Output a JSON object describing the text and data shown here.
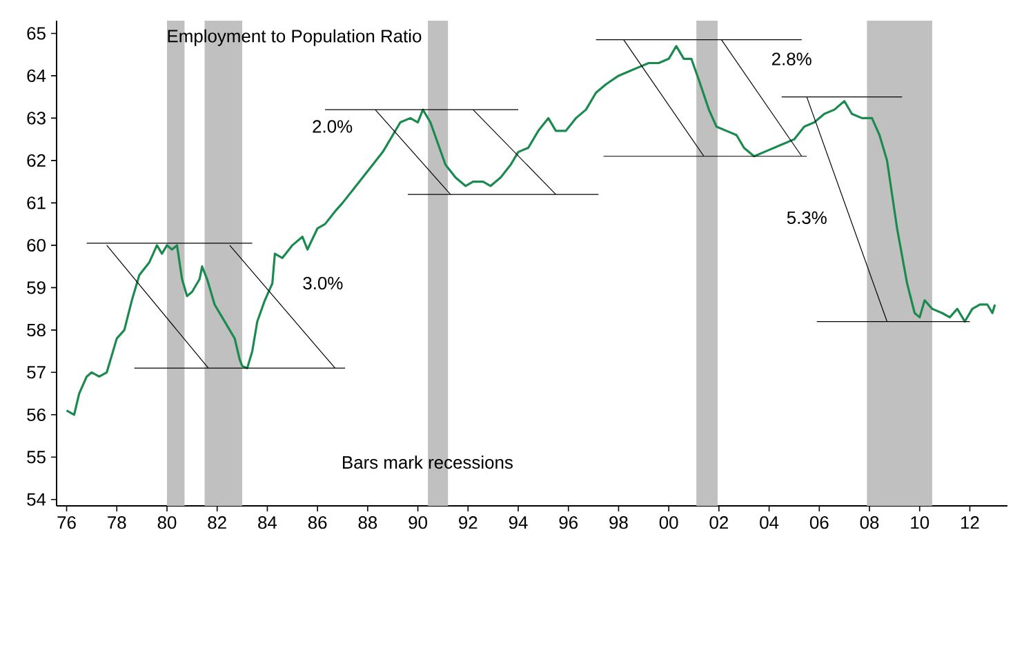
{
  "chart_data": {
    "type": "line",
    "title": "Employment to Population Ratio",
    "xlim": [
      1975.6,
      2013.5
    ],
    "ylim": [
      53.85,
      65.3
    ],
    "xticks": [
      {
        "value": 1976,
        "label": "76"
      },
      {
        "value": 1978,
        "label": "78"
      },
      {
        "value": 1980,
        "label": "80"
      },
      {
        "value": 1982,
        "label": "82"
      },
      {
        "value": 1984,
        "label": "84"
      },
      {
        "value": 1986,
        "label": "86"
      },
      {
        "value": 1988,
        "label": "88"
      },
      {
        "value": 1990,
        "label": "90"
      },
      {
        "value": 1992,
        "label": "92"
      },
      {
        "value": 1994,
        "label": "94"
      },
      {
        "value": 1996,
        "label": "96"
      },
      {
        "value": 1998,
        "label": "98"
      },
      {
        "value": 2000,
        "label": "00"
      },
      {
        "value": 2002,
        "label": "02"
      },
      {
        "value": 2004,
        "label": "04"
      },
      {
        "value": 2006,
        "label": "06"
      },
      {
        "value": 2008,
        "label": "08"
      },
      {
        "value": 2010,
        "label": "10"
      },
      {
        "value": 2012,
        "label": "12"
      }
    ],
    "yticks": [
      54,
      55,
      56,
      57,
      58,
      59,
      60,
      61,
      62,
      63,
      64,
      65
    ],
    "series": [
      {
        "color": "#1b8a4f",
        "x": [
          1976.0,
          1976.3,
          1976.5,
          1976.8,
          1977.0,
          1977.3,
          1977.6,
          1978.0,
          1978.3,
          1978.6,
          1978.9,
          1979.3,
          1979.6,
          1979.8,
          1980.0,
          1980.2,
          1980.4,
          1980.6,
          1980.8,
          1981.0,
          1981.3,
          1981.4,
          1981.6,
          1981.9,
          1982.2,
          1982.5,
          1982.7,
          1982.9,
          1983.0,
          1983.2,
          1983.4,
          1983.6,
          1983.9,
          1984.2,
          1984.3,
          1984.6,
          1985.0,
          1985.4,
          1985.6,
          1986.0,
          1986.3,
          1986.7,
          1987.0,
          1987.4,
          1987.8,
          1988.2,
          1988.6,
          1989.0,
          1989.3,
          1989.7,
          1990.0,
          1990.2,
          1990.5,
          1990.8,
          1991.1,
          1991.5,
          1991.9,
          1992.2,
          1992.6,
          1992.9,
          1993.3,
          1993.7,
          1994.0,
          1994.4,
          1994.8,
          1995.2,
          1995.5,
          1995.9,
          1996.3,
          1996.7,
          1997.1,
          1997.5,
          1998.0,
          1998.4,
          1998.8,
          1999.2,
          1999.6,
          2000.0,
          2000.3,
          2000.6,
          2000.9,
          2001.2,
          2001.6,
          2001.9,
          2002.3,
          2002.7,
          2003.0,
          2003.4,
          2003.8,
          2004.2,
          2004.6,
          2005.0,
          2005.4,
          2005.8,
          2006.2,
          2006.6,
          2007.0,
          2007.3,
          2007.7,
          2008.1,
          2008.4,
          2008.7,
          2009.1,
          2009.5,
          2009.8,
          2010.0,
          2010.2,
          2010.5,
          2010.9,
          2011.2,
          2011.5,
          2011.8,
          2012.1,
          2012.4,
          2012.7,
          2012.9,
          2013.0
        ],
        "values": [
          56.1,
          56.0,
          56.5,
          56.9,
          57.0,
          56.9,
          57.0,
          57.8,
          58.0,
          58.7,
          59.3,
          59.6,
          60.0,
          59.8,
          60.0,
          59.9,
          60.0,
          59.2,
          58.8,
          58.9,
          59.2,
          59.5,
          59.2,
          58.6,
          58.3,
          58.0,
          57.8,
          57.3,
          57.15,
          57.1,
          57.5,
          58.2,
          58.7,
          59.1,
          59.8,
          59.7,
          60.0,
          60.2,
          59.9,
          60.4,
          60.5,
          60.8,
          61.0,
          61.3,
          61.6,
          61.9,
          62.2,
          62.6,
          62.9,
          63.0,
          62.9,
          63.2,
          62.9,
          62.4,
          61.9,
          61.6,
          61.4,
          61.5,
          61.5,
          61.4,
          61.6,
          61.9,
          62.2,
          62.3,
          62.7,
          63.0,
          62.7,
          62.7,
          63.0,
          63.2,
          63.6,
          63.8,
          64.0,
          64.1,
          64.2,
          64.3,
          64.3,
          64.4,
          64.7,
          64.4,
          64.4,
          63.9,
          63.2,
          62.8,
          62.7,
          62.6,
          62.3,
          62.1,
          62.2,
          62.3,
          62.4,
          62.5,
          62.8,
          62.9,
          63.1,
          63.2,
          63.4,
          63.1,
          63.0,
          63.0,
          62.6,
          62.0,
          60.4,
          59.1,
          58.4,
          58.3,
          58.7,
          58.5,
          58.4,
          58.3,
          58.5,
          58.2,
          58.5,
          58.6,
          58.6,
          58.4,
          58.6
        ]
      },
      {
        "color": "#000000",
        "x": [
          1976.8,
          1983.4
        ],
        "values": [
          60.05,
          60.05
        ]
      },
      {
        "color": "#000000",
        "x": [
          1978.7,
          1987.1
        ],
        "values": [
          57.1,
          57.1
        ]
      },
      {
        "color": "#000000",
        "x": [
          1977.6,
          1981.65
        ],
        "values": [
          60.0,
          57.1
        ]
      },
      {
        "color": "#000000",
        "x": [
          1982.5,
          1986.7
        ],
        "values": [
          60.0,
          57.1
        ]
      },
      {
        "color": "#000000",
        "x": [
          1986.3,
          1994.0
        ],
        "values": [
          63.2,
          63.2
        ]
      },
      {
        "color": "#000000",
        "x": [
          1989.6,
          1997.2
        ],
        "values": [
          61.2,
          61.2
        ]
      },
      {
        "color": "#000000",
        "x": [
          1988.3,
          1991.3
        ],
        "values": [
          63.2,
          61.2
        ]
      },
      {
        "color": "#000000",
        "x": [
          1992.2,
          1995.5
        ],
        "values": [
          63.2,
          61.2
        ]
      },
      {
        "color": "#000000",
        "x": [
          1997.1,
          2005.3
        ],
        "values": [
          64.85,
          64.85
        ]
      },
      {
        "color": "#000000",
        "x": [
          1997.4,
          2005.5
        ],
        "values": [
          62.1,
          62.1
        ]
      },
      {
        "color": "#000000",
        "x": [
          1998.2,
          2001.4
        ],
        "values": [
          64.85,
          62.1
        ]
      },
      {
        "color": "#000000",
        "x": [
          2002.1,
          2005.3
        ],
        "values": [
          64.85,
          62.1
        ]
      },
      {
        "color": "#000000",
        "x": [
          2004.5,
          2009.3
        ],
        "values": [
          63.5,
          63.5
        ]
      },
      {
        "color": "#000000",
        "x": [
          2005.9,
          2012.0
        ],
        "values": [
          58.2,
          58.2
        ]
      },
      {
        "color": "#000000",
        "x": [
          2005.5,
          2008.7
        ],
        "values": [
          63.5,
          58.2
        ]
      }
    ],
    "bands": [
      {
        "axis": "x",
        "from": 1980.0,
        "to": 1980.7,
        "color": "#c0c0c0"
      },
      {
        "axis": "x",
        "from": 1981.5,
        "to": 1983.0,
        "color": "#c0c0c0"
      },
      {
        "axis": "x",
        "from": 1990.4,
        "to": 1991.2,
        "color": "#c0c0c0"
      },
      {
        "axis": "x",
        "from": 2001.1,
        "to": 2001.95,
        "color": "#c0c0c0"
      },
      {
        "axis": "x",
        "from": 2007.9,
        "to": 2010.5,
        "color": "#c0c0c0"
      }
    ],
    "annotations": [
      "3.0%",
      "2.0%",
      "2.8%",
      "5.3%",
      "Bars mark recessions"
    ],
    "grid": false,
    "marker": "none",
    "line_style": "solid"
  }
}
